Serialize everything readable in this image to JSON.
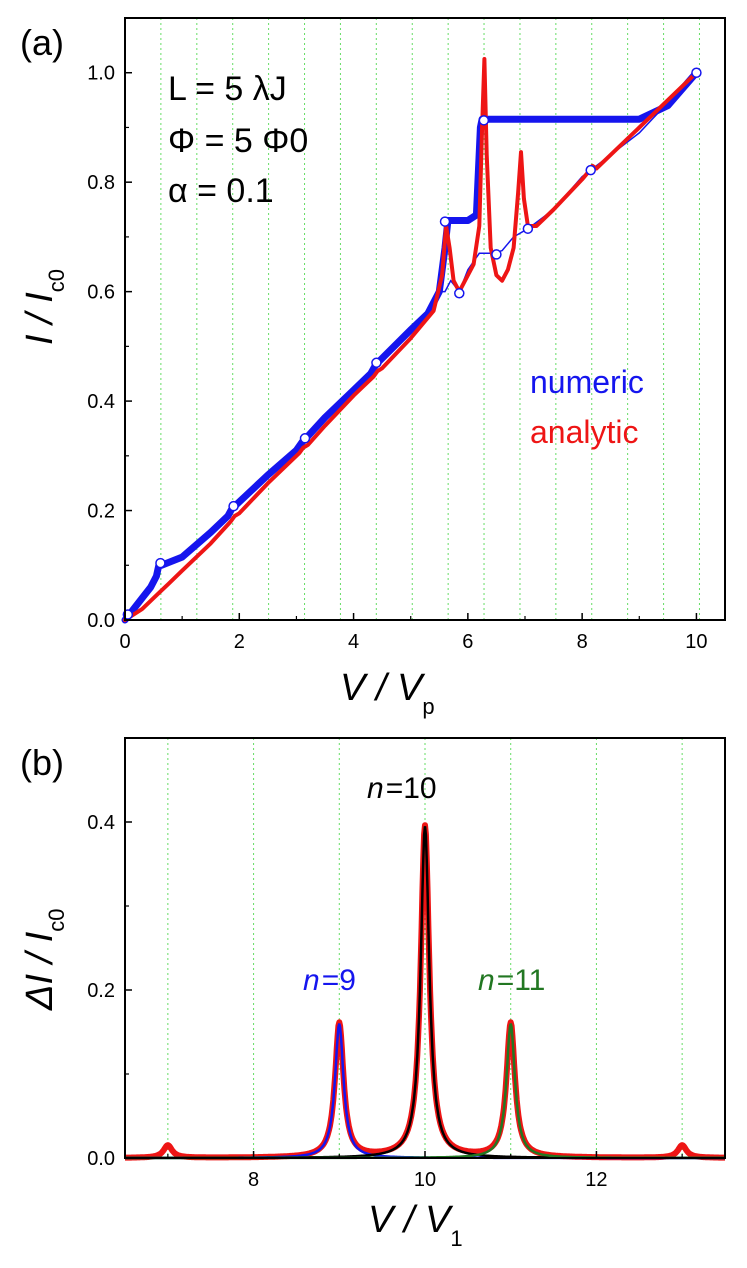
{
  "chart_data": [
    {
      "type": "line",
      "panel_label": "(a)",
      "xlabel": {
        "main": "V / V",
        "sub": "p"
      },
      "ylabel": {
        "main": "I / I",
        "sub": "c0"
      },
      "xlim": [
        0,
        10.5
      ],
      "ylim": [
        0,
        1.1
      ],
      "xticks": [
        "0",
        "2",
        "4",
        "6",
        "8",
        "10"
      ],
      "yticks": [
        "0.0",
        "0.2",
        "0.4",
        "0.6",
        "0.8",
        "1.0"
      ],
      "grid": "vertical dotted green lines",
      "params": [
        "L = 5 λJ",
        "Φ = 5 Φ0",
        "α = 0.1"
      ],
      "vlines": [
        0.628,
        1.257,
        1.885,
        2.513,
        3.142,
        3.77,
        4.398,
        5.027,
        5.655,
        6.283,
        6.912,
        7.54,
        8.168,
        8.796,
        9.425,
        10.053
      ],
      "series": [
        {
          "name": "numeric",
          "color": "#1515ee",
          "x": [
            0,
            0.15,
            0.3,
            0.45,
            0.55,
            0.6,
            0.64,
            1.0,
            1.5,
            1.8,
            1.88,
            1.92,
            2.5,
            3.0,
            3.1,
            3.15,
            3.5,
            4.0,
            4.3,
            4.38,
            4.42,
            5.0,
            5.3,
            5.5,
            5.6,
            5.65,
            6.0,
            6.15,
            6.22,
            6.25,
            6.32,
            6.5,
            6.6,
            6.7,
            6.8,
            7.0,
            7.5,
            8.0,
            8.5,
            9.0,
            9.5,
            10.0
          ],
          "y": [
            0,
            0.02,
            0.04,
            0.06,
            0.08,
            0.104,
            0.1,
            0.115,
            0.16,
            0.19,
            0.205,
            0.208,
            0.265,
            0.31,
            0.325,
            0.33,
            0.37,
            0.42,
            0.45,
            0.465,
            0.47,
            0.53,
            0.56,
            0.6,
            0.68,
            0.73,
            0.73,
            0.74,
            0.9,
            0.915,
            0.915,
            0.915,
            0.915,
            0.915,
            0.915,
            0.915,
            0.915,
            0.915,
            0.915,
            0.915,
            0.94,
            1.0
          ],
          "hysteresis_branch": {
            "x": [
              9.45,
              9.0,
              8.5,
              8.0,
              7.5,
              7.05,
              6.8,
              6.6,
              6.45,
              6.2,
              6.0,
              5.85,
              5.7,
              5.6,
              5.45
            ],
            "y": [
              0.94,
              0.89,
              0.85,
              0.81,
              0.75,
              0.715,
              0.7,
              0.675,
              0.67,
              0.67,
              0.64,
              0.6,
              0.62,
              0.6,
              0.6
            ]
          },
          "markers_x": [
            0.05,
            0.62,
            1.9,
            3.15,
            4.4,
            5.6,
            5.85,
            6.28,
            6.5,
            7.05,
            8.15,
            10.0
          ],
          "markers_y": [
            0.01,
            0.104,
            0.208,
            0.332,
            0.47,
            0.728,
            0.597,
            0.913,
            0.668,
            0.715,
            0.822,
            1.0
          ]
        },
        {
          "name": "analytic",
          "color": "#ee1515",
          "x": [
            0,
            0.3,
            0.6,
            0.75,
            1.0,
            1.5,
            1.85,
            1.92,
            2.0,
            2.5,
            3.05,
            3.12,
            3.2,
            3.5,
            4.0,
            4.35,
            4.42,
            4.5,
            5.0,
            5.4,
            5.55,
            5.62,
            5.68,
            5.75,
            5.85,
            5.95,
            6.1,
            6.2,
            6.25,
            6.29,
            6.33,
            6.4,
            6.5,
            6.6,
            6.7,
            6.8,
            6.88,
            6.93,
            6.98,
            7.05,
            7.2,
            7.5,
            8.0,
            8.12,
            8.18,
            8.25,
            8.5,
            9.0,
            9.5,
            10.0
          ],
          "y": [
            0,
            0.02,
            0.05,
            0.065,
            0.09,
            0.14,
            0.18,
            0.19,
            0.195,
            0.25,
            0.305,
            0.315,
            0.32,
            0.355,
            0.41,
            0.445,
            0.455,
            0.46,
            0.515,
            0.565,
            0.63,
            0.72,
            0.68,
            0.62,
            0.6,
            0.62,
            0.65,
            0.72,
            0.9,
            1.025,
            0.85,
            0.68,
            0.63,
            0.62,
            0.64,
            0.68,
            0.78,
            0.855,
            0.77,
            0.72,
            0.72,
            0.75,
            0.805,
            0.82,
            0.83,
            0.825,
            0.85,
            0.9,
            0.95,
            1.0
          ]
        }
      ]
    },
    {
      "type": "line",
      "panel_label": "(b)",
      "xlabel": {
        "main": "V / V",
        "sub": "1"
      },
      "ylabel": {
        "main": "ΔI / I",
        "sub": "c0"
      },
      "xlim": [
        6.5,
        13.5
      ],
      "ylim": [
        0,
        0.5
      ],
      "xticks": [
        "8",
        "10",
        "12"
      ],
      "yticks": [
        "0.0",
        "0.2",
        "0.4"
      ],
      "grid": "vertical dotted green lines",
      "vlines": [
        7,
        8,
        9,
        10,
        11,
        12,
        13
      ],
      "peaks": [
        {
          "label": "n=9",
          "n": "9",
          "x0": 9,
          "amp": 0.16,
          "width": 0.06,
          "color": "#1515ee"
        },
        {
          "label": "n=10",
          "n": "10",
          "x0": 10,
          "amp": 0.395,
          "width": 0.06,
          "color": "#000000"
        },
        {
          "label": "n=11",
          "n": "11",
          "x0": 11,
          "amp": 0.16,
          "width": 0.06,
          "color": "#227722"
        }
      ],
      "total": {
        "color": "#ee1515",
        "side_peaks": [
          {
            "x0": 7,
            "amp": 0.015
          },
          {
            "x0": 13,
            "amp": 0.015
          }
        ]
      }
    }
  ]
}
